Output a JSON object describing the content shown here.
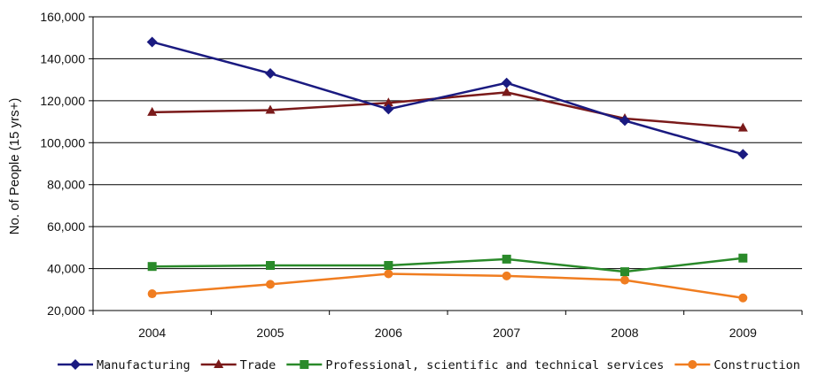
{
  "chart_data": {
    "type": "line",
    "title": "",
    "xlabel": "",
    "ylabel": "No. of People (15 yrs+)",
    "categories": [
      "2004",
      "2005",
      "2006",
      "2007",
      "2008",
      "2009"
    ],
    "ylim": [
      20000,
      160000
    ],
    "yticks": [
      20000,
      40000,
      60000,
      80000,
      100000,
      120000,
      140000,
      160000
    ],
    "ytick_labels": [
      "20,000",
      "40,000",
      "60,000",
      "80,000",
      "100,000",
      "120,000",
      "140,000",
      "160,000"
    ],
    "grid": "horizontal",
    "legend_position": "bottom",
    "series": [
      {
        "name": "Manufacturing",
        "color": "#1a1a80",
        "marker": "diamond",
        "values": [
          148000,
          133000,
          116000,
          128500,
          110500,
          94500
        ]
      },
      {
        "name": "Trade",
        "color": "#7a1a1a",
        "marker": "triangle",
        "values": [
          114500,
          115500,
          119000,
          124000,
          111500,
          107000
        ]
      },
      {
        "name": "Professional, scientific and technical services",
        "color": "#2a8a2a",
        "marker": "square",
        "values": [
          41000,
          41500,
          41500,
          44500,
          38500,
          45000
        ]
      },
      {
        "name": "Construction",
        "color": "#f07d20",
        "marker": "circle",
        "values": [
          28000,
          32500,
          37500,
          36500,
          34500,
          26000
        ]
      }
    ]
  }
}
